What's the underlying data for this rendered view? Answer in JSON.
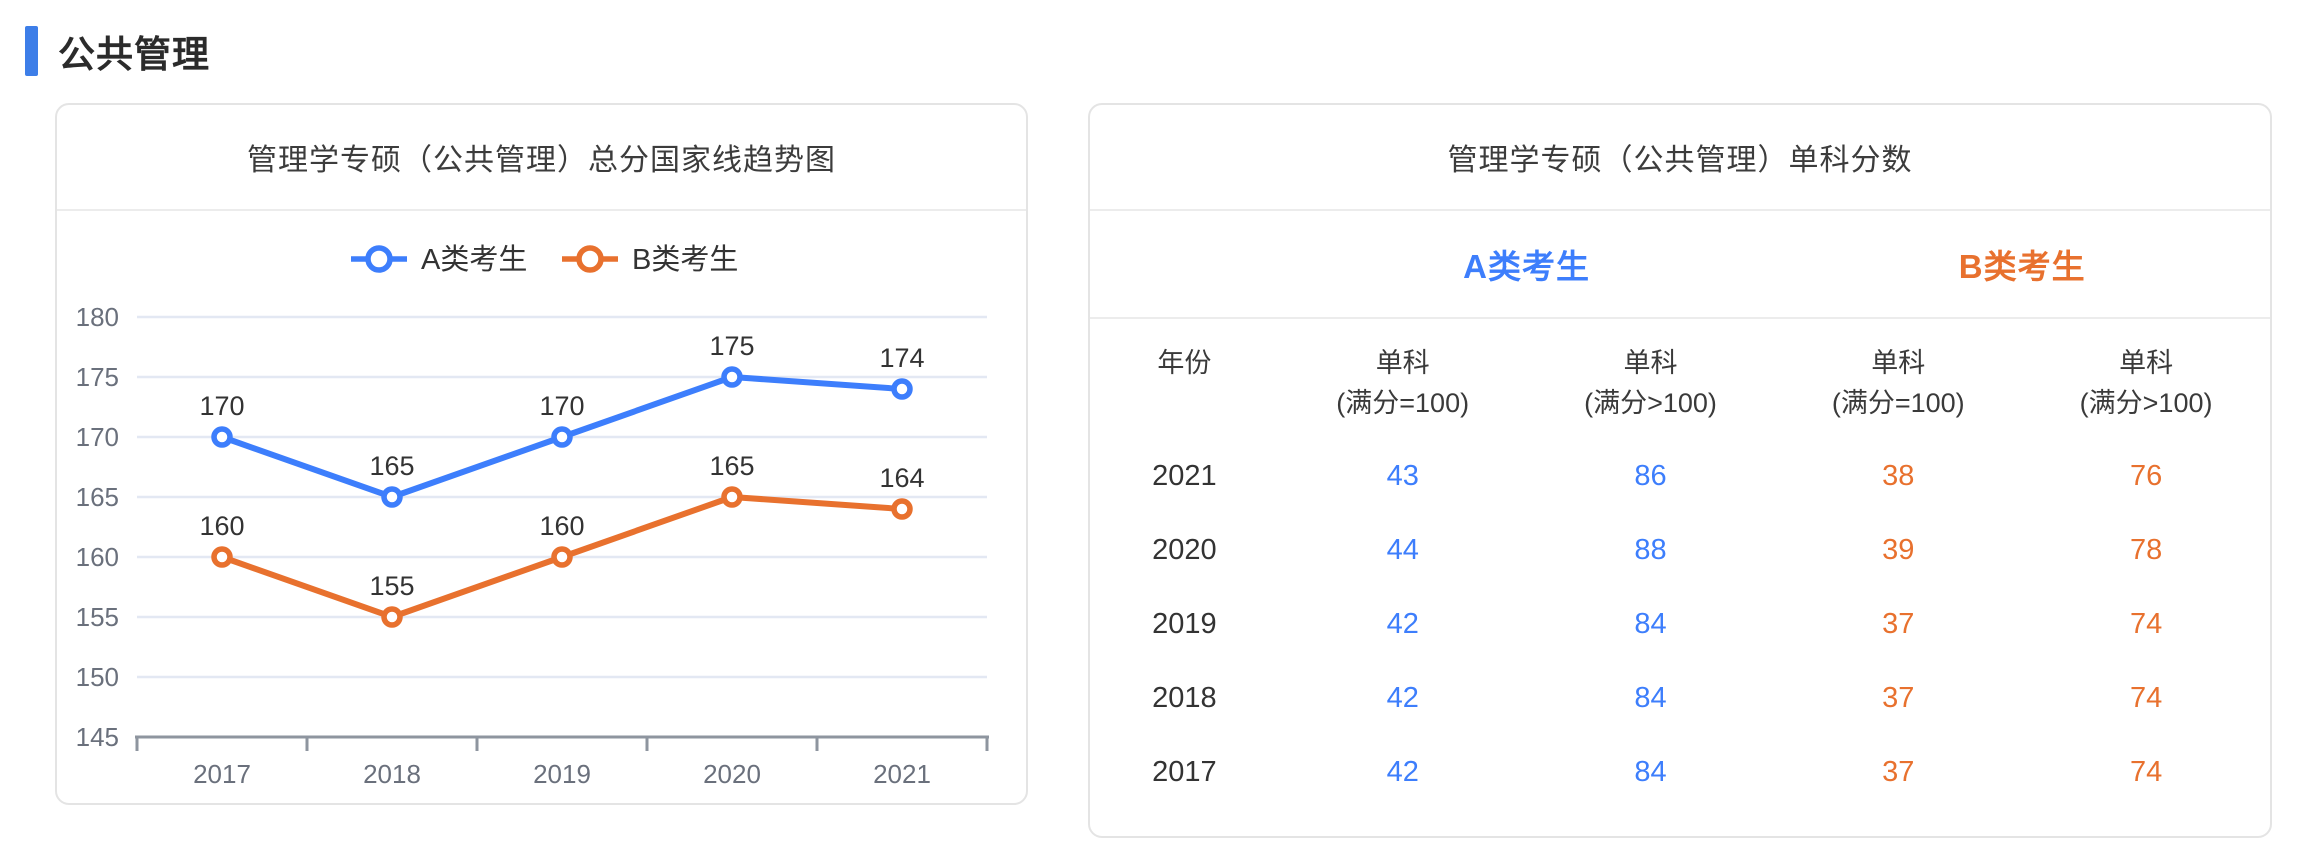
{
  "page": {
    "section_title": "公共管理"
  },
  "colors": {
    "accent_blue": "#3d7efc",
    "accent_orange": "#e8712e",
    "section_bar_blue": "#3d7ee8",
    "grid_line": "#e3e8f3",
    "axis_line": "#8e959f",
    "tick_text": "#6a707c",
    "data_label_text": "#333333",
    "legend_text": "#333333"
  },
  "chart_data": {
    "type": "line",
    "title": "管理学专硕（公共管理）总分国家线趋势图",
    "x": [
      "2017",
      "2018",
      "2019",
      "2020",
      "2021"
    ],
    "series": [
      {
        "name": "A类考生",
        "color": "#3d7efc",
        "values": [
          170,
          165,
          170,
          175,
          174
        ]
      },
      {
        "name": "B类考生",
        "color": "#e8712e",
        "values": [
          160,
          155,
          160,
          165,
          164
        ]
      }
    ],
    "ylim": [
      145,
      180
    ],
    "ytick_step": 5,
    "grid": true,
    "legend_position": "top",
    "data_labels": true,
    "marker": "empty-circle"
  },
  "table_panel": {
    "title": "管理学专硕（公共管理）单科分数",
    "groups": [
      {
        "label": "A类考生",
        "color": "#3d7efc"
      },
      {
        "label": "B类考生",
        "color": "#e8712e"
      }
    ],
    "year_header": "年份",
    "subject_headers": [
      {
        "line1": "单科",
        "line2": "(满分=100)"
      },
      {
        "line1": "单科",
        "line2": "(满分>100)"
      },
      {
        "line1": "单科",
        "line2": "(满分=100)"
      },
      {
        "line1": "单科",
        "line2": "(满分>100)"
      }
    ],
    "rows": [
      {
        "year": "2021",
        "values": [
          "43",
          "86",
          "38",
          "76"
        ]
      },
      {
        "year": "2020",
        "values": [
          "44",
          "88",
          "39",
          "78"
        ]
      },
      {
        "year": "2019",
        "values": [
          "42",
          "84",
          "37",
          "74"
        ]
      },
      {
        "year": "2018",
        "values": [
          "42",
          "84",
          "37",
          "74"
        ]
      },
      {
        "year": "2017",
        "values": [
          "42",
          "84",
          "37",
          "74"
        ]
      }
    ]
  }
}
